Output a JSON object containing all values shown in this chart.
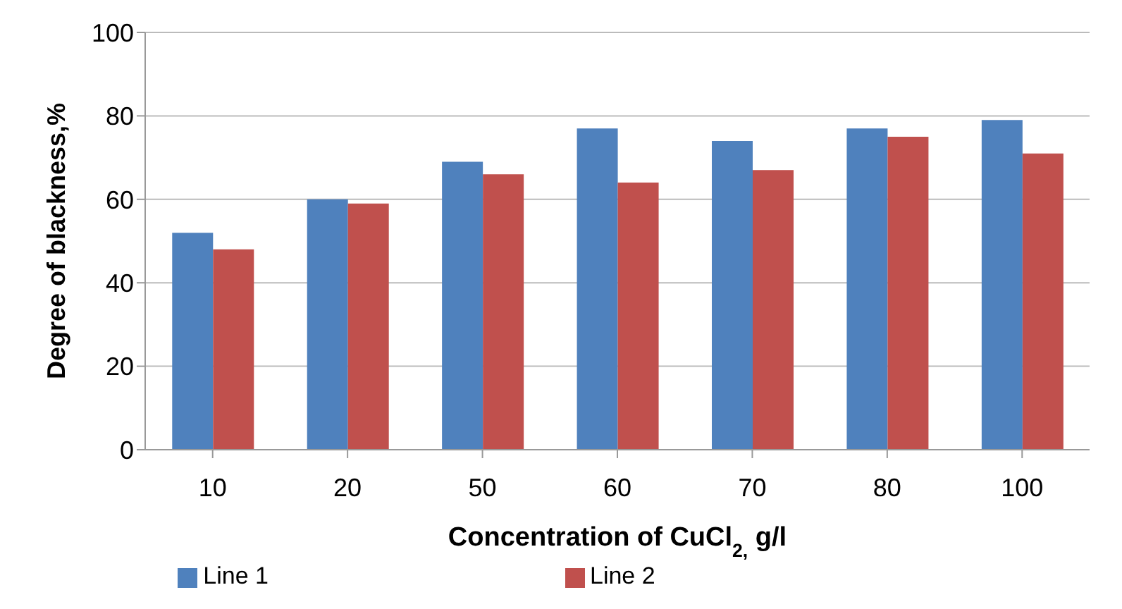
{
  "chart_data": {
    "type": "bar",
    "xlabel": "Concentration of CuCl$_{2,}$ g/l",
    "ylabel": "Degree of blackness,%",
    "categories": [
      "10",
      "20",
      "50",
      "60",
      "70",
      "80",
      "100"
    ],
    "series": [
      {
        "name": "Line 1",
        "color": "#4f81bd",
        "values": [
          52,
          60,
          69,
          77,
          74,
          77,
          79
        ]
      },
      {
        "name": "Line 2",
        "color": "#c0504d",
        "values": [
          48,
          59,
          66,
          64,
          67,
          75,
          71
        ]
      }
    ],
    "ylim": [
      0,
      100
    ],
    "yticks": [
      0,
      20,
      40,
      60,
      80,
      100
    ],
    "grid": "y",
    "legend": "bottom"
  }
}
